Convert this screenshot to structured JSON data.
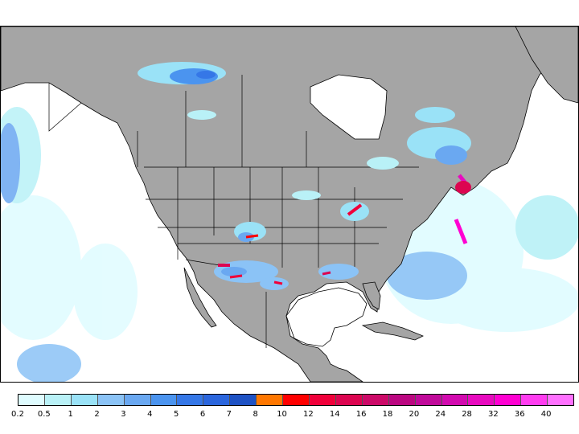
{
  "map": {
    "region": "North America",
    "variable": "precipitation",
    "land_color": "#a5a5a5",
    "ocean_color": "#ffffff",
    "border_color": "#000000"
  },
  "legend": {
    "colors": [
      "#dffcff",
      "#b9f1f7",
      "#9ae2f7",
      "#8bc3f6",
      "#6aa8f1",
      "#4b94ef",
      "#3577e7",
      "#2b66dd",
      "#1e52c4",
      "#ff7700",
      "#ff0000",
      "#f0003a",
      "#dc0550",
      "#cc0a68",
      "#bb0781",
      "#c00a9a",
      "#d20aaf",
      "#e80abf",
      "#ff00d2",
      "#ff3cf0",
      "#ff70ff"
    ],
    "labels": [
      "0.2",
      "0.5",
      "1",
      "2",
      "3",
      "4",
      "5",
      "6",
      "7",
      "8",
      "10",
      "12",
      "14",
      "16",
      "18",
      "20",
      "24",
      "28",
      "32",
      "36",
      "40"
    ]
  }
}
